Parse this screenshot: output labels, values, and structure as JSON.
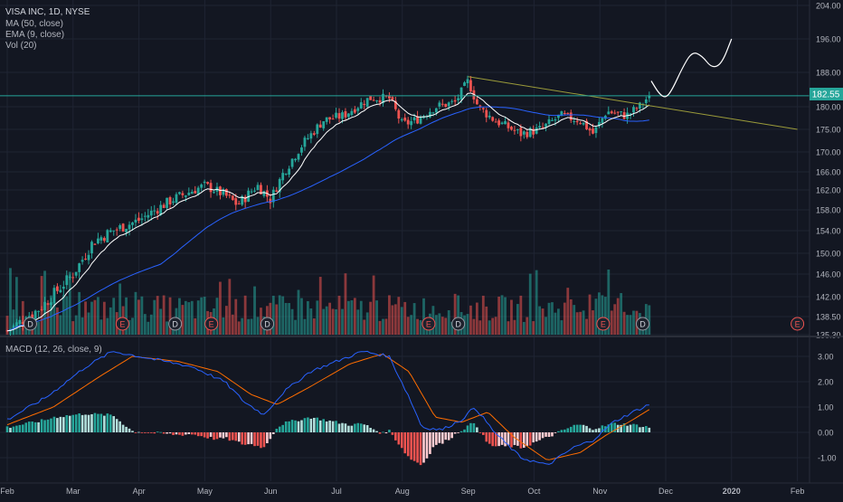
{
  "header": {
    "title": "VISA INC, 1D, NYSE",
    "indicators": [
      "MA (50, close)",
      "EMA (9, close)",
      "Vol (20)"
    ]
  },
  "macd_header": "MACD (12, 26, close, 9)",
  "colors": {
    "background": "#131722",
    "grid": "#1f2433",
    "axis_text": "#b2b5be",
    "up": "#26a69a",
    "down": "#ef5350",
    "ma50": "#2962ff",
    "ema9": "#ffffff",
    "trendline": "#9b9b3a",
    "price_line": "#26a69a",
    "macd_line": "#2962ff",
    "signal_line": "#ff6d00"
  },
  "last_price": "182.55",
  "chart_data": [
    {
      "type": "candlestick",
      "title": "VISA INC, 1D, NYSE",
      "y_ticks": [
        "204.00",
        "196.00",
        "188.00",
        "180.00",
        "175.00",
        "170.00",
        "166.00",
        "162.00",
        "158.00",
        "154.00",
        "150.00",
        "146.00",
        "142.00",
        "138.50",
        "135.30"
      ],
      "y_tick_values": [
        204,
        196,
        188,
        180,
        175,
        170,
        166,
        162,
        158,
        154,
        150,
        146,
        142,
        138.5,
        135.3
      ],
      "x_ticks": [
        "Feb",
        "Mar",
        "Apr",
        "May",
        "Jun",
        "Jul",
        "Aug",
        "Sep",
        "Oct",
        "Nov",
        "Dec",
        "2020",
        "Feb"
      ],
      "x_tick_month_offsets": [
        0,
        1,
        2,
        3,
        4,
        5,
        6,
        7,
        8,
        9,
        10,
        11,
        12
      ],
      "candles_approx": {
        "start_month": "Feb 2019",
        "end_month": "Nov 2019",
        "keypoints": [
          {
            "month": 0.0,
            "close": 136
          },
          {
            "month": 0.5,
            "close": 140
          },
          {
            "month": 1.0,
            "close": 146
          },
          {
            "month": 1.3,
            "close": 152
          },
          {
            "month": 1.6,
            "close": 154
          },
          {
            "month": 2.0,
            "close": 156
          },
          {
            "month": 2.5,
            "close": 160
          },
          {
            "month": 3.0,
            "close": 163
          },
          {
            "month": 3.3,
            "close": 161
          },
          {
            "month": 3.5,
            "close": 159
          },
          {
            "month": 3.8,
            "close": 163
          },
          {
            "month": 4.0,
            "close": 160
          },
          {
            "month": 4.2,
            "close": 166
          },
          {
            "month": 4.5,
            "close": 172
          },
          {
            "month": 4.8,
            "close": 177
          },
          {
            "month": 5.1,
            "close": 178
          },
          {
            "month": 5.5,
            "close": 182
          },
          {
            "month": 5.8,
            "close": 182
          },
          {
            "month": 6.0,
            "close": 176
          },
          {
            "month": 6.2,
            "close": 177
          },
          {
            "month": 6.5,
            "close": 180
          },
          {
            "month": 6.8,
            "close": 181
          },
          {
            "month": 7.0,
            "close": 186
          },
          {
            "month": 7.15,
            "close": 180
          },
          {
            "month": 7.4,
            "close": 177
          },
          {
            "month": 7.8,
            "close": 174
          },
          {
            "month": 8.1,
            "close": 175
          },
          {
            "month": 8.4,
            "close": 178
          },
          {
            "month": 8.7,
            "close": 177
          },
          {
            "month": 8.9,
            "close": 174
          },
          {
            "month": 9.1,
            "close": 179
          },
          {
            "month": 9.4,
            "close": 178
          },
          {
            "month": 9.6,
            "close": 180
          },
          {
            "month": 9.75,
            "close": 182.55
          }
        ]
      },
      "overlays": [
        "MA (50, close)",
        "EMA (9, close)"
      ],
      "trendline": {
        "from": {
          "month": 7.0,
          "price": 187
        },
        "to": {
          "month": 12.0,
          "price": 175
        }
      },
      "projection_path": [
        {
          "month": 9.78,
          "price": 186
        },
        {
          "month": 9.9,
          "price": 183
        },
        {
          "month": 10.0,
          "price": 182
        },
        {
          "month": 10.1,
          "price": 184
        },
        {
          "month": 10.25,
          "price": 189
        },
        {
          "month": 10.4,
          "price": 193
        },
        {
          "month": 10.55,
          "price": 192
        },
        {
          "month": 10.7,
          "price": 189
        },
        {
          "month": 10.85,
          "price": 190
        },
        {
          "month": 11.0,
          "price": 196
        }
      ],
      "earnings_markers": [
        {
          "label": "D",
          "month": 0.35
        },
        {
          "label": "E",
          "month": 1.75
        },
        {
          "label": "D",
          "month": 2.55
        },
        {
          "label": "E",
          "month": 3.1
        },
        {
          "label": "D",
          "month": 3.95
        },
        {
          "label": "E",
          "month": 6.4
        },
        {
          "label": "D",
          "month": 6.85
        },
        {
          "label": "E",
          "month": 9.05
        },
        {
          "label": "D",
          "month": 9.65
        },
        {
          "label": "E",
          "month": 12.0
        }
      ],
      "volume_seed": 7
    },
    {
      "type": "macd",
      "title": "MACD (12, 26, close, 9)",
      "y_ticks": [
        "3.00",
        "2.00",
        "1.00",
        "0.00",
        "-1.00"
      ],
      "y_tick_values": [
        3,
        2,
        1,
        0,
        -1
      ],
      "macd_keypoints": [
        {
          "month": 0.0,
          "v": 0.5
        },
        {
          "month": 0.6,
          "v": 1.4
        },
        {
          "month": 1.2,
          "v": 2.6
        },
        {
          "month": 1.6,
          "v": 3.2
        },
        {
          "month": 2.2,
          "v": 2.9
        },
        {
          "month": 2.8,
          "v": 2.6
        },
        {
          "month": 3.3,
          "v": 2.0
        },
        {
          "month": 3.6,
          "v": 1.2
        },
        {
          "month": 3.9,
          "v": 0.7
        },
        {
          "month": 4.2,
          "v": 1.6
        },
        {
          "month": 4.6,
          "v": 2.4
        },
        {
          "month": 5.0,
          "v": 2.8
        },
        {
          "month": 5.4,
          "v": 3.2
        },
        {
          "month": 5.8,
          "v": 3.0
        },
        {
          "month": 6.1,
          "v": 1.4
        },
        {
          "month": 6.3,
          "v": 0.2
        },
        {
          "month": 6.6,
          "v": 0.1
        },
        {
          "month": 6.9,
          "v": 0.5
        },
        {
          "month": 7.1,
          "v": 1.0
        },
        {
          "month": 7.4,
          "v": 0.0
        },
        {
          "month": 7.8,
          "v": -1.0
        },
        {
          "month": 8.2,
          "v": -1.3
        },
        {
          "month": 8.6,
          "v": -0.6
        },
        {
          "month": 8.9,
          "v": -0.3
        },
        {
          "month": 9.2,
          "v": 0.4
        },
        {
          "month": 9.5,
          "v": 0.8
        },
        {
          "month": 9.75,
          "v": 1.1
        }
      ],
      "signal_keypoints": [
        {
          "month": 0.0,
          "v": 0.3
        },
        {
          "month": 0.7,
          "v": 1.0
        },
        {
          "month": 1.4,
          "v": 2.2
        },
        {
          "month": 1.9,
          "v": 3.0
        },
        {
          "month": 2.6,
          "v": 2.8
        },
        {
          "month": 3.2,
          "v": 2.4
        },
        {
          "month": 3.7,
          "v": 1.5
        },
        {
          "month": 4.1,
          "v": 1.1
        },
        {
          "month": 4.6,
          "v": 1.8
        },
        {
          "month": 5.2,
          "v": 2.7
        },
        {
          "month": 5.7,
          "v": 3.1
        },
        {
          "month": 6.1,
          "v": 2.4
        },
        {
          "month": 6.5,
          "v": 0.6
        },
        {
          "month": 6.9,
          "v": 0.4
        },
        {
          "month": 7.3,
          "v": 0.8
        },
        {
          "month": 7.7,
          "v": -0.2
        },
        {
          "month": 8.2,
          "v": -1.1
        },
        {
          "month": 8.7,
          "v": -0.8
        },
        {
          "month": 9.1,
          "v": -0.1
        },
        {
          "month": 9.5,
          "v": 0.5
        },
        {
          "month": 9.75,
          "v": 0.9
        }
      ]
    }
  ]
}
